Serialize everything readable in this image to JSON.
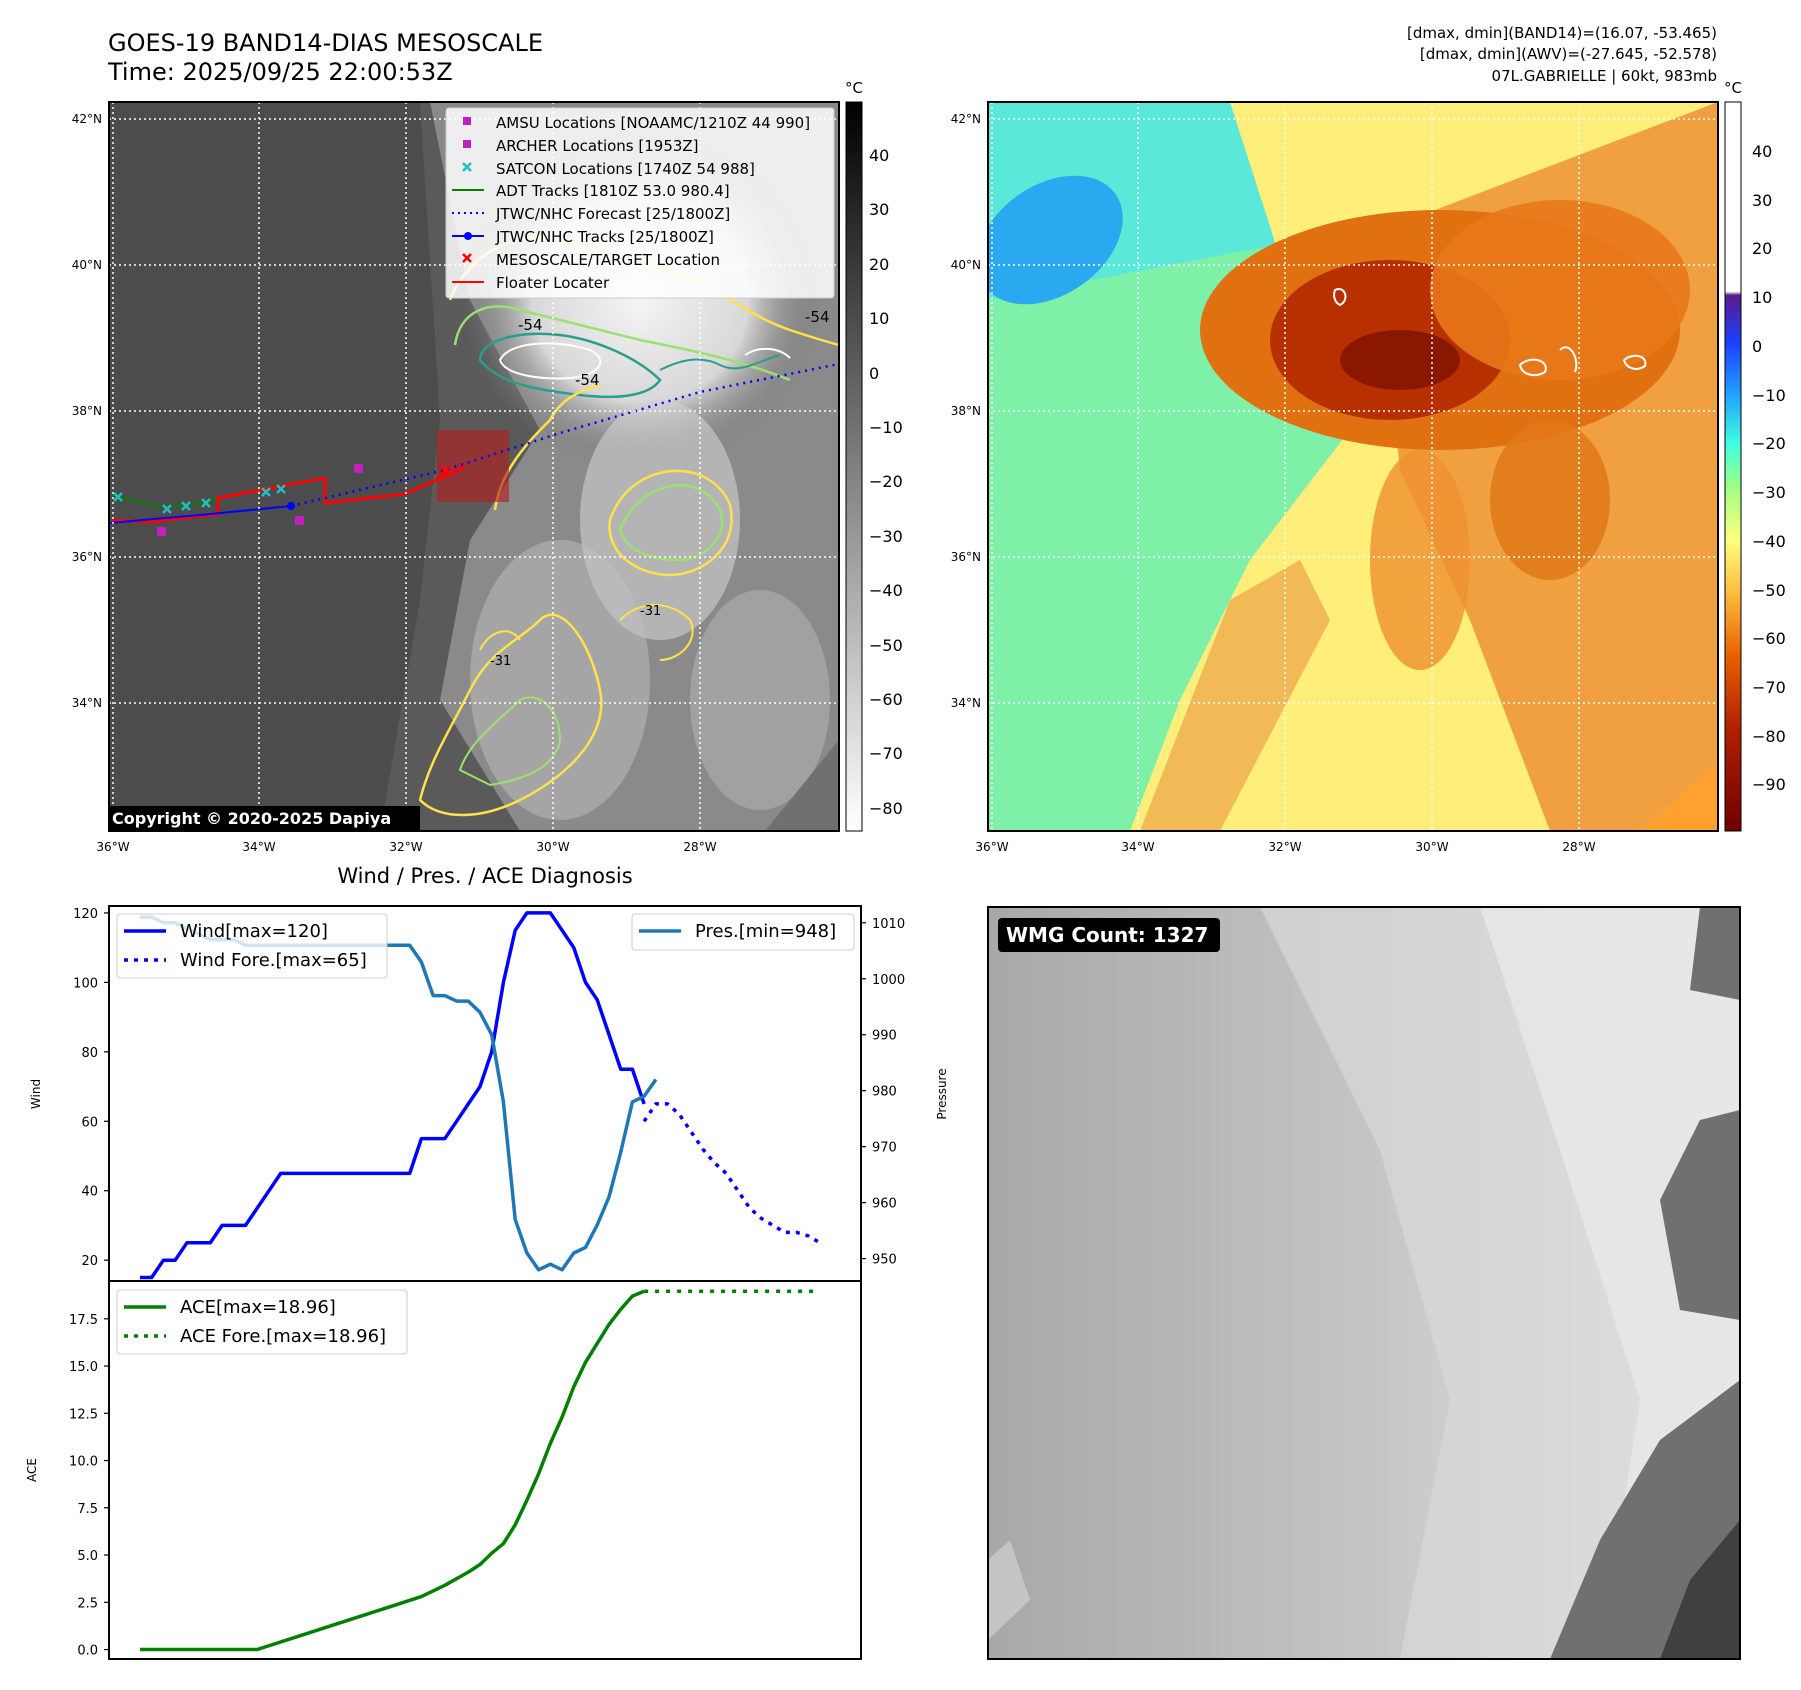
{
  "header": {
    "title_line1": "GOES-19 BAND14-DIAS MESOSCALE",
    "title_line2": "Time: 2025/09/25 22:00:53Z",
    "right_line1": "[dmax, dmin](BAND14)=(16.07, -53.465)",
    "right_line2": "[dmax, dmin](AWV)=(-27.645, -52.578)",
    "right_line3": "07L.GABRIELLE | 60kt, 983mb"
  },
  "map_axes": {
    "lat_labels": [
      "42°N",
      "40°N",
      "38°N",
      "36°N",
      "34°N"
    ],
    "lon_labels": [
      "36°W",
      "34°W",
      "32°W",
      "30°W",
      "28°W"
    ],
    "copyright": "Copyright © 2020-2025 Dapiya"
  },
  "contour_labels": [
    "-54",
    "-54",
    "-54",
    "-31",
    "-31"
  ],
  "colorbar_gray": {
    "unit": "°C",
    "ticks": [
      "40",
      "30",
      "20",
      "10",
      "0",
      "−10",
      "−20",
      "−30",
      "−40",
      "−50",
      "−60",
      "−70",
      "−80"
    ]
  },
  "colorbar_color": {
    "unit": "°C",
    "ticks": [
      "40",
      "30",
      "20",
      "10",
      "0",
      "−10",
      "−20",
      "−30",
      "−40",
      "−50",
      "−60",
      "−70",
      "−80",
      "−90"
    ]
  },
  "legend": {
    "items": [
      {
        "label": "AMSU Locations [NOAAMC/1210Z 44 990]",
        "marker": "square",
        "color": "#c020c0"
      },
      {
        "label": "ARCHER Locations [1953Z]",
        "marker": "square",
        "color": "#c020c0"
      },
      {
        "label": "SATCON Locations [1740Z 54 988]",
        "marker": "x",
        "color": "#20c0c0"
      },
      {
        "label": "ADT Tracks [1810Z 53.0 980.4]",
        "marker": "line",
        "color": "#008000"
      },
      {
        "label": "JTWC/NHC Forecast [25/1800Z]",
        "marker": "dotted",
        "color": "#0000ff"
      },
      {
        "label": "JTWC/NHC Tracks [25/1800Z]",
        "marker": "line-dot",
        "color": "#0000ff"
      },
      {
        "label": "MESOSCALE/TARGET Location",
        "marker": "x",
        "color": "#ff0000"
      },
      {
        "label": "Floater Locater",
        "marker": "line",
        "color": "#ff0000"
      }
    ]
  },
  "wmg": {
    "label": "WMG Count: 1327"
  },
  "chart_data": [
    {
      "type": "line",
      "title": "Wind / Pres. / ACE Diagnosis",
      "ylabel": "Wind",
      "y2label": "Pressure",
      "ylim": [
        14,
        122
      ],
      "y2lim": [
        946,
        1013
      ],
      "yticks": [
        20,
        40,
        60,
        80,
        100,
        120
      ],
      "y2ticks": [
        950,
        960,
        970,
        980,
        990,
        1000,
        1010
      ],
      "legend_left": [
        "Wind[max=120]",
        "Wind Fore.[max=65]"
      ],
      "legend_right": [
        "Pres.[min=948]"
      ],
      "series": [
        {
          "name": "Wind[max=120]",
          "axis": "left",
          "style": "solid",
          "color": "#0000ff",
          "x": [
            0,
            1,
            2,
            3,
            4,
            5,
            6,
            7,
            8,
            9,
            10,
            11,
            12,
            13,
            14,
            15,
            16,
            17,
            18,
            19,
            20,
            21,
            22,
            23,
            24,
            25,
            26,
            27,
            28,
            29,
            30,
            31,
            32,
            33,
            34,
            35,
            36,
            37,
            38,
            39,
            40,
            41,
            42,
            43
          ],
          "values": [
            15,
            15,
            20,
            20,
            25,
            25,
            25,
            30,
            30,
            30,
            35,
            40,
            45,
            45,
            45,
            45,
            45,
            45,
            45,
            45,
            45,
            45,
            45,
            45,
            55,
            55,
            55,
            60,
            65,
            70,
            80,
            100,
            115,
            120,
            120,
            120,
            115,
            110,
            100,
            95,
            85,
            75,
            75,
            65
          ]
        },
        {
          "name": "Wind Fore.[max=65]",
          "axis": "left",
          "style": "dotted",
          "color": "#0000ff",
          "x": [
            43,
            44,
            45,
            46,
            47,
            48,
            49,
            50,
            51,
            52,
            53,
            54,
            55,
            56,
            57,
            58
          ],
          "values": [
            60,
            65,
            65,
            62,
            57,
            52,
            48,
            45,
            40,
            35,
            32,
            30,
            28,
            28,
            27,
            25
          ]
        },
        {
          "name": "Pres.[min=948]",
          "axis": "right",
          "style": "solid",
          "color": "#1f77b4",
          "x": [
            0,
            1,
            2,
            3,
            4,
            5,
            6,
            7,
            8,
            9,
            10,
            11,
            12,
            13,
            14,
            15,
            16,
            17,
            18,
            19,
            20,
            21,
            22,
            23,
            24,
            25,
            26,
            27,
            28,
            29,
            30,
            31,
            32,
            33,
            34,
            35,
            36,
            37,
            38,
            39,
            40,
            41,
            42,
            43,
            44
          ],
          "values": [
            1011,
            1011,
            1010,
            1010,
            1009,
            1008,
            1007,
            1007,
            1007,
            1006,
            1006,
            1006,
            1006,
            1006,
            1006,
            1006,
            1006,
            1006,
            1006,
            1006,
            1006,
            1006,
            1006,
            1006,
            1003,
            997,
            997,
            996,
            996,
            994,
            990,
            978,
            957,
            951,
            948,
            949,
            948,
            951,
            952,
            956,
            961,
            969,
            978,
            979,
            982
          ]
        }
      ]
    },
    {
      "type": "line",
      "ylabel": "ACE",
      "ylim": [
        -0.5,
        19.5
      ],
      "yticks": [
        0.0,
        2.5,
        5.0,
        7.5,
        10.0,
        12.5,
        15.0,
        17.5
      ],
      "legend": [
        "ACE[max=18.96]",
        "ACE Fore.[max=18.96]"
      ],
      "series": [
        {
          "name": "ACE[max=18.96]",
          "style": "solid",
          "color": "#008000",
          "x": [
            0,
            4,
            8,
            10,
            14,
            18,
            22,
            24,
            26,
            28,
            29,
            30,
            31,
            32,
            33,
            34,
            35,
            36,
            37,
            38,
            39,
            40,
            41,
            42,
            43
          ],
          "values": [
            0,
            0,
            0,
            0,
            0.8,
            1.6,
            2.4,
            2.8,
            3.4,
            4.1,
            4.5,
            5.1,
            5.6,
            6.6,
            7.9,
            9.3,
            10.9,
            12.3,
            13.9,
            15.2,
            16.2,
            17.2,
            18.0,
            18.7,
            18.96
          ]
        },
        {
          "name": "ACE Fore.[max=18.96]",
          "style": "dotted",
          "color": "#008000",
          "x": [
            43,
            58
          ],
          "values": [
            18.96,
            18.96
          ]
        }
      ]
    }
  ]
}
